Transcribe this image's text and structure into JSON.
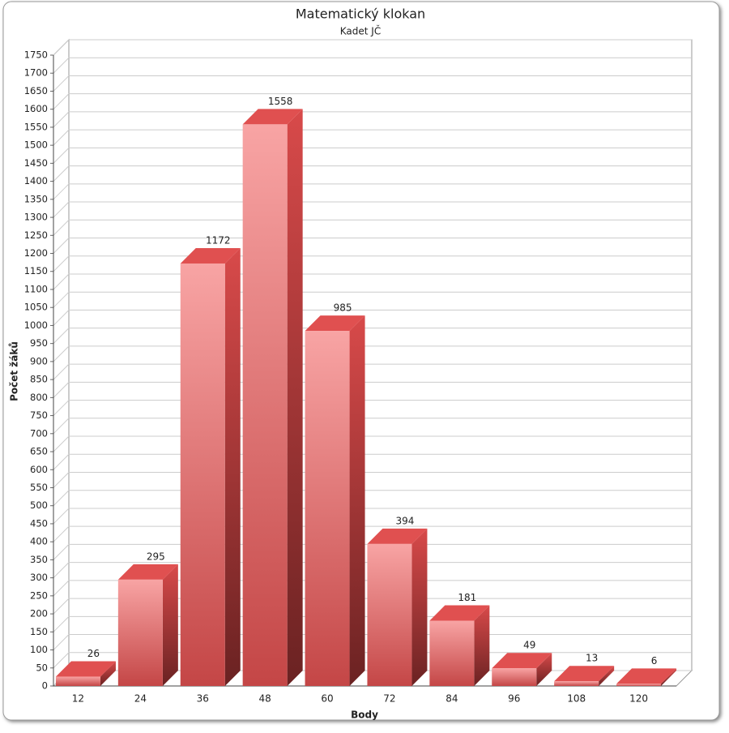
{
  "chart_data": {
    "type": "bar",
    "title": "Matematický klokan",
    "subtitle": "Kadet JČ",
    "x_label": "Body",
    "y_label": "Počet žáků",
    "categories": [
      "12",
      "24",
      "36",
      "48",
      "60",
      "72",
      "84",
      "96",
      "108",
      "120"
    ],
    "values": [
      26,
      295,
      1172,
      1558,
      985,
      394,
      181,
      49,
      13,
      6
    ],
    "color": "#e05050",
    "ylim": [
      0,
      1750
    ],
    "yticks": [
      0,
      50,
      100,
      150,
      200,
      250,
      300,
      350,
      400,
      450,
      500,
      550,
      600,
      650,
      700,
      750,
      800,
      850,
      900,
      950,
      1000,
      1050,
      1100,
      1150,
      1200,
      1250,
      1300,
      1350,
      1400,
      1450,
      1500,
      1550,
      1600,
      1650,
      1700,
      1750
    ],
    "grid": true
  }
}
